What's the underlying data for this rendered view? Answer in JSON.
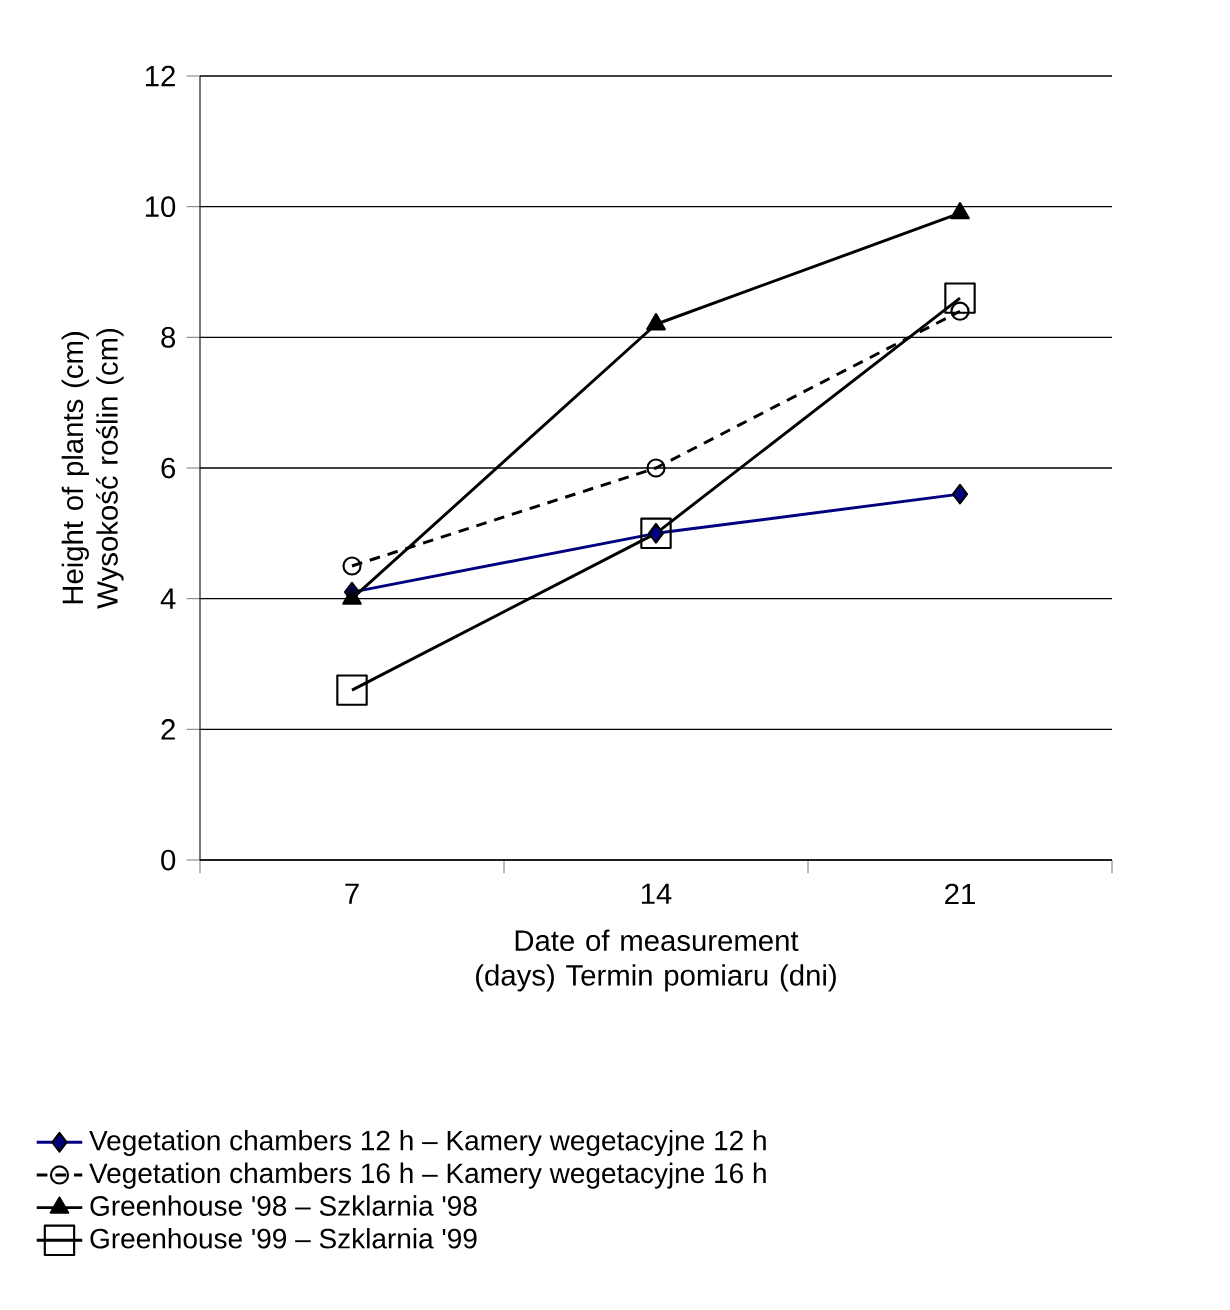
{
  "chart_data": {
    "type": "line",
    "xlabel": "Date of measurement (days) Termin pomiaru (dni)",
    "ylabel": "Height of plants (cm) Wysokość roślin (cm)",
    "categories": [
      "7",
      "14",
      "21"
    ],
    "series": [
      {
        "name": "Vegetation chambers 12 h – Kamery wegetacyjne 12 h",
        "color": "#000080",
        "marker": "diamond",
        "line_style": "solid",
        "values": [
          4.1,
          5.0,
          5.6
        ]
      },
      {
        "name": "Vegetation chambers 16 h – Kamery wegetacyjne 16 h",
        "color": "#000000",
        "marker": "circle",
        "line_style": "dashed",
        "values": [
          4.5,
          6.0,
          8.4
        ]
      },
      {
        "name": "Greenhouse '98 – Szklarnia '98",
        "color": "#000000",
        "marker": "triangle",
        "line_style": "solid",
        "values": [
          4.0,
          8.2,
          9.9
        ]
      },
      {
        "name": "Greenhouse '99 – Szklarnia '99",
        "color": "#000000",
        "marker": "square",
        "line_style": "solid",
        "values": [
          2.6,
          5.0,
          8.6
        ]
      }
    ],
    "ylim": [
      0,
      12
    ],
    "yticks": [
      0,
      2,
      4,
      6,
      8,
      10,
      12
    ],
    "grid": "y",
    "legend": "bottom"
  }
}
